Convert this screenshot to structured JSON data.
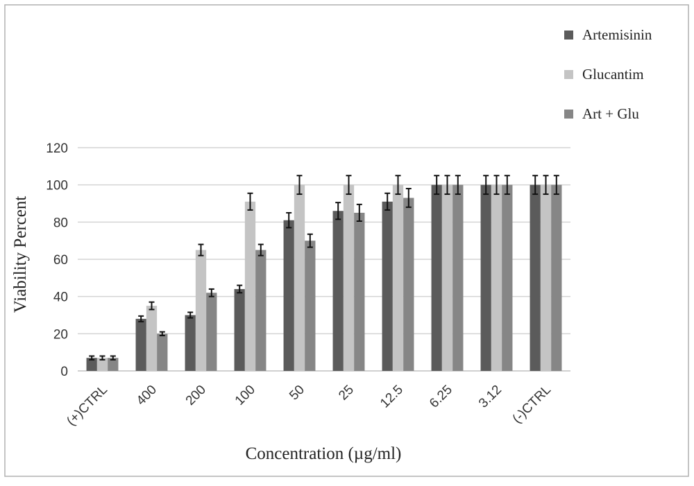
{
  "chart_data": {
    "type": "bar",
    "title": "",
    "xlabel": "Concentration (µg/ml)",
    "ylabel": "Viability Percent",
    "ylim": [
      0,
      120
    ],
    "yticks": [
      0,
      20,
      40,
      60,
      80,
      100,
      120
    ],
    "grid": true,
    "legend_position": "top-right",
    "categories": [
      "(+)CTRL",
      "400",
      "200",
      "100",
      "50",
      "25",
      "12.5",
      "6.25",
      "3.12",
      "(-)CTRL"
    ],
    "series": [
      {
        "name": "Artemisinin",
        "color": "#5b5b5b",
        "values": [
          7,
          28,
          30,
          44,
          81,
          86,
          91,
          100,
          100,
          100
        ],
        "errors": [
          1,
          1.5,
          1.5,
          2,
          4,
          4.5,
          4.5,
          5,
          5,
          5
        ]
      },
      {
        "name": "Glucantim",
        "color": "#c4c4c4",
        "values": [
          7,
          35,
          65,
          91,
          100,
          100,
          100,
          100,
          100,
          100
        ],
        "errors": [
          1,
          2,
          3,
          4.5,
          5,
          5,
          5,
          5,
          5,
          5
        ]
      },
      {
        "name": "Art + Glu",
        "color": "#868686",
        "values": [
          7,
          20,
          42,
          65,
          70,
          85,
          93,
          100,
          100,
          100
        ],
        "errors": [
          1,
          1,
          2,
          3,
          3.5,
          4.5,
          5,
          5,
          5,
          5
        ]
      }
    ]
  }
}
